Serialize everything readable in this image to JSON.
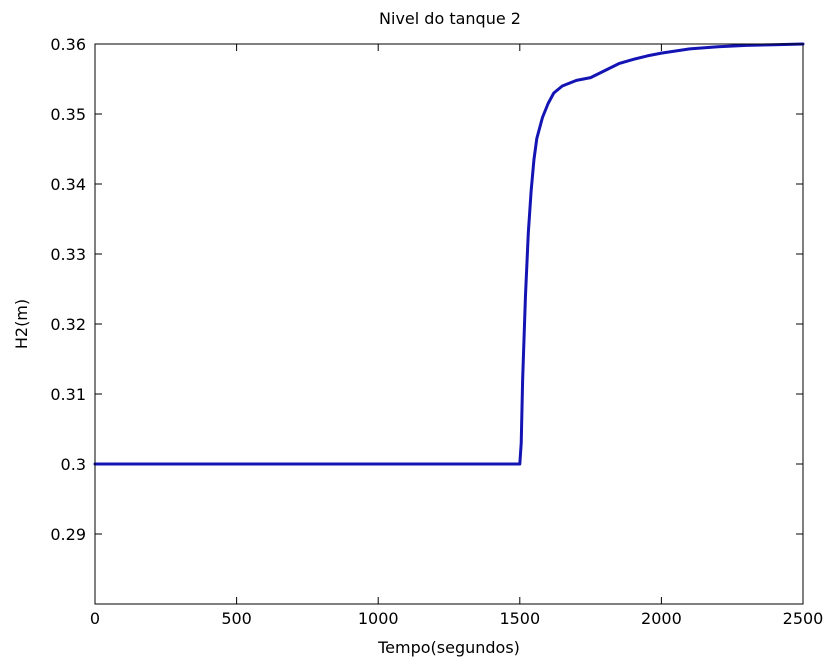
{
  "chart_data": {
    "type": "line",
    "title": "Nivel do tanque 2",
    "xlabel": "Tempo(segundos)",
    "ylabel": "H2(m)",
    "xlim": [
      0,
      2500
    ],
    "ylim": [
      0.28,
      0.36
    ],
    "x_ticks": [
      0,
      500,
      1000,
      1500,
      2000,
      2500
    ],
    "x_tick_labels": [
      "0",
      "500",
      "1000",
      "1500",
      "2000",
      "2500"
    ],
    "y_ticks": [
      0.29,
      0.3,
      0.31,
      0.32,
      0.33,
      0.34,
      0.35,
      0.36
    ],
    "y_tick_labels": [
      "0.29",
      "0.3",
      "0.31",
      "0.32",
      "0.33",
      "0.34",
      "0.35",
      "0.36"
    ],
    "grid": false,
    "series": [
      {
        "color": "#1414b4",
        "x": [
          0,
          100,
          200,
          300,
          400,
          500,
          600,
          700,
          800,
          900,
          1000,
          1100,
          1200,
          1300,
          1400,
          1500,
          1505,
          1510,
          1520,
          1530,
          1540,
          1550,
          1560,
          1580,
          1600,
          1620,
          1650,
          1700,
          1750,
          1800,
          1850,
          1900,
          1950,
          2000,
          2100,
          2200,
          2300,
          2400,
          2500
        ],
        "y": [
          0.3,
          0.3,
          0.3,
          0.3,
          0.3,
          0.3,
          0.3,
          0.3,
          0.3,
          0.3,
          0.3,
          0.3,
          0.3,
          0.3,
          0.3,
          0.3,
          0.303,
          0.312,
          0.324,
          0.333,
          0.339,
          0.3435,
          0.3465,
          0.3495,
          0.3515,
          0.353,
          0.354,
          0.3548,
          0.3552,
          0.3562,
          0.3572,
          0.3578,
          0.3583,
          0.3587,
          0.3593,
          0.3596,
          0.3598,
          0.3599,
          0.36
        ]
      }
    ]
  }
}
